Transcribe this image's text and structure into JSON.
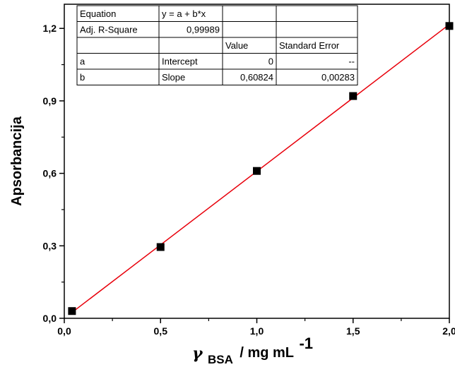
{
  "chart_data": {
    "type": "scatter",
    "xlabel": {
      "symbol": "γ",
      "subscript": "BSA",
      "unit": "/ mg mL",
      "superscript": "-1"
    },
    "ylabel": "Apsorbancija",
    "xlim": [
      0,
      2.0
    ],
    "ylim": [
      0,
      1.3
    ],
    "x_ticks": [
      "0,0",
      "0,5",
      "1,0",
      "1,5",
      "2,0"
    ],
    "x_tick_values": [
      0,
      0.5,
      1.0,
      1.5,
      2.0
    ],
    "y_ticks": [
      "0,0",
      "0,3",
      "0,6",
      "0,9",
      "1,2"
    ],
    "y_tick_values": [
      0,
      0.3,
      0.6,
      0.9,
      1.2
    ],
    "series": [
      {
        "marker": "square",
        "color": "#000000",
        "x": [
          0.04,
          0.5,
          1.0,
          1.5,
          2.0
        ],
        "y": [
          0.03,
          0.295,
          0.61,
          0.92,
          1.21
        ]
      }
    ],
    "fit_line": {
      "color": "#e8000b",
      "intercept": 0,
      "slope": 0.60824
    },
    "fit_table": {
      "rows": [
        [
          "Equation",
          "y = a + b*x",
          "",
          ""
        ],
        [
          "Adj. R-Square",
          "0,99989",
          "",
          ""
        ],
        [
          "",
          "",
          "Value",
          "Standard Error"
        ],
        [
          "a",
          "Intercept",
          "0",
          "--"
        ],
        [
          "b",
          "Slope",
          "0,60824",
          "0,00283"
        ]
      ]
    }
  }
}
